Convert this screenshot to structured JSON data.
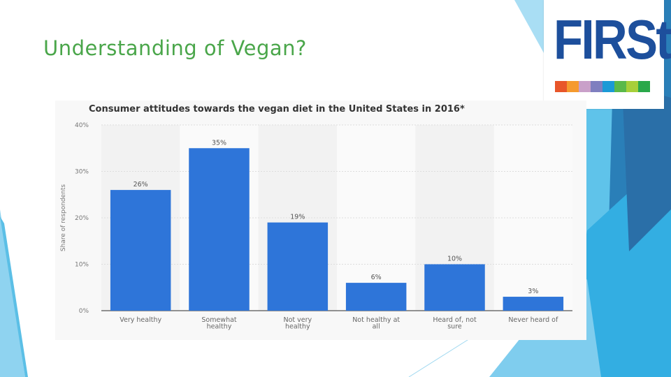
{
  "slide": {
    "title": "Understanding of Vegan?"
  },
  "logo": {
    "text": "FIRSt",
    "text_color": "#1d4f9c",
    "stripe_colors": [
      "#e8562a",
      "#f59a2e",
      "#c9a0c9",
      "#7f7fbf",
      "#1b9ad6",
      "#5ab94a",
      "#a7cf3a",
      "#2aa84a"
    ]
  },
  "theme": {
    "bar_color": "#2e75d9",
    "accent_light": "#8fd3f0",
    "accent_mid": "#35a9dc",
    "accent_dark": "#2a6fa8"
  },
  "chart_data": {
    "type": "bar",
    "title": "Consumer attitudes towards the vegan diet in the United States in 2016*",
    "ylabel": "Share of respondents",
    "xlabel": "",
    "ylim": [
      0,
      40
    ],
    "y_ticks": [
      "0%",
      "10%",
      "20%",
      "30%",
      "40%"
    ],
    "categories": [
      [
        "Very healthy"
      ],
      [
        "Somewhat",
        "healthy"
      ],
      [
        "Not very",
        "healthy"
      ],
      [
        "Not healthy at",
        "all"
      ],
      [
        "Heard of, not",
        "sure"
      ],
      [
        "Never heard of"
      ]
    ],
    "values": [
      26,
      35,
      19,
      6,
      10,
      3
    ],
    "data_labels": [
      "26%",
      "35%",
      "19%",
      "6%",
      "10%",
      "3%"
    ],
    "grid": true,
    "legend": "none"
  }
}
